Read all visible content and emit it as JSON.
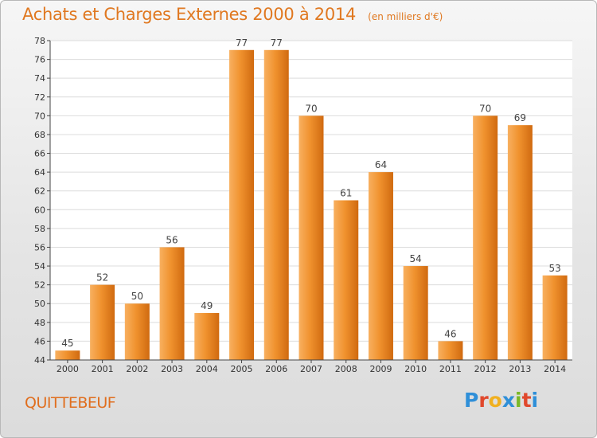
{
  "title": "Achats et Charges Externes 2000 à 2014",
  "subtitle": "(en milliers d'€)",
  "location": "QUITTEBEUF",
  "brand": {
    "letters": [
      "P",
      "r",
      "o",
      "x",
      "i",
      "t",
      "i"
    ],
    "colors": [
      "#2f8fd8",
      "#e0482c",
      "#f0b020",
      "#2f8fd8",
      "#7ab828",
      "#e0482c",
      "#2f8fd8"
    ]
  },
  "chart_data": {
    "type": "bar",
    "title": "Achats et Charges Externes 2000 à 2014",
    "subtitle": "(en milliers d'€)",
    "xlabel": "",
    "ylabel": "",
    "categories": [
      "2000",
      "2001",
      "2002",
      "2003",
      "2004",
      "2005",
      "2006",
      "2007",
      "2008",
      "2009",
      "2010",
      "2011",
      "2012",
      "2013",
      "2014"
    ],
    "values": [
      45,
      52,
      50,
      56,
      49,
      77,
      77,
      70,
      61,
      64,
      54,
      46,
      70,
      69,
      53
    ],
    "ylim": [
      44,
      78
    ],
    "yticks": [
      "44",
      "46",
      "48",
      "50",
      "52",
      "54",
      "56",
      "58",
      "60",
      "62",
      "64",
      "66",
      "68",
      "70",
      "72",
      "74",
      "76",
      "78"
    ],
    "grid": true,
    "legend": "none",
    "bar_color": "#f0922e",
    "bar_color_light": "#f8b060",
    "bar_color_dark": "#d06a10"
  }
}
